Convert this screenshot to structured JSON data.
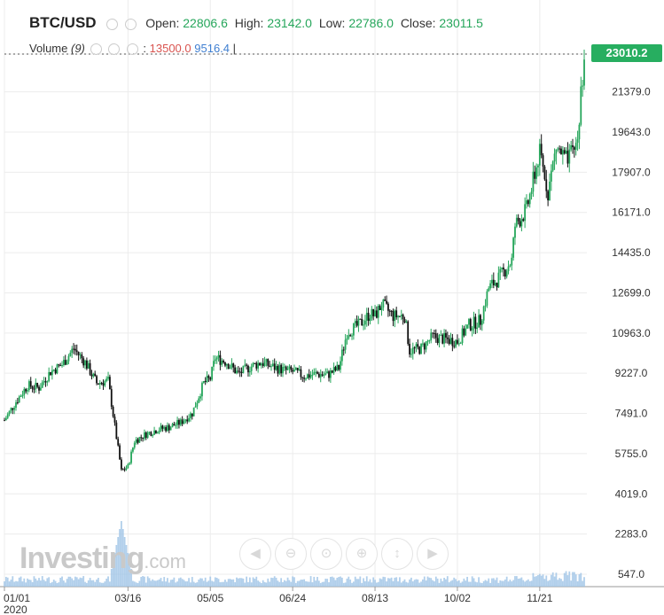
{
  "header": {
    "symbol": "BTC/USD",
    "open_label": "Open:",
    "open": "22806.6",
    "high_label": "High:",
    "high": "23142.0",
    "low_label": "Low:",
    "low": "22786.0",
    "close_label": "Close:",
    "close": "23011.5"
  },
  "volume_legend": {
    "label": "Volume",
    "period": "(9)",
    "sep": ":",
    "v1": "13500.0",
    "v2": "9516.4",
    "end": "|"
  },
  "current_price": "23010.2",
  "logo": {
    "main": "Investing",
    "suffix": ".com"
  },
  "colors": {
    "up": "#26a65b",
    "down": "#111111",
    "volume": "#9ec3e6",
    "grid": "#ececec",
    "price_tag": "#27ae60"
  },
  "nav_icons": [
    "arrow-left-icon",
    "zoom-out-icon",
    "zoom-reset-icon",
    "zoom-in-icon",
    "scroll-icon",
    "arrow-right-icon"
  ],
  "chart_data": {
    "type": "candlestick",
    "y_ticks": [
      "23010.2",
      "21379.0",
      "19643.0",
      "17907.0",
      "16171.0",
      "14435.0",
      "12699.0",
      "10963.0",
      "9227.0",
      "7491.0",
      "5755.0",
      "4019.0",
      "2283.0",
      "547.0"
    ],
    "y_tick_values": [
      23010.2,
      21379.0,
      19643.0,
      17907.0,
      16171.0,
      14435.0,
      12699.0,
      10963.0,
      9227.0,
      7491.0,
      5755.0,
      4019.0,
      2283.0,
      547.0
    ],
    "x_ticks": [
      "01/01",
      "03/16",
      "05/05",
      "06/24",
      "08/13",
      "10/02",
      "11/21"
    ],
    "x_year": "2020",
    "ylim": [
      0,
      24000
    ],
    "close_path": [
      [
        "01/01",
        7200
      ],
      [
        "01/08",
        8000
      ],
      [
        "01/15",
        8700
      ],
      [
        "01/22",
        8600
      ],
      [
        "01/29",
        9300
      ],
      [
        "02/05",
        9600
      ],
      [
        "02/12",
        10300
      ],
      [
        "02/19",
        9700
      ],
      [
        "02/26",
        8800
      ],
      [
        "03/04",
        8900
      ],
      [
        "03/12",
        5000
      ],
      [
        "03/16",
        5200
      ],
      [
        "03/20",
        6300
      ],
      [
        "03/27",
        6600
      ],
      [
        "04/03",
        6800
      ],
      [
        "04/10",
        6900
      ],
      [
        "04/17",
        7100
      ],
      [
        "04/24",
        7500
      ],
      [
        "05/01",
        8800
      ],
      [
        "05/05",
        9000
      ],
      [
        "05/08",
        9900
      ],
      [
        "05/15",
        9700
      ],
      [
        "05/22",
        9200
      ],
      [
        "05/29",
        9500
      ],
      [
        "06/05",
        9700
      ],
      [
        "06/12",
        9500
      ],
      [
        "06/19",
        9350
      ],
      [
        "06/24",
        9300
      ],
      [
        "07/01",
        9100
      ],
      [
        "07/08",
        9200
      ],
      [
        "07/15",
        9150
      ],
      [
        "07/22",
        9450
      ],
      [
        "07/27",
        11000
      ],
      [
        "08/03",
        11300
      ],
      [
        "08/10",
        11800
      ],
      [
        "08/13",
        11700
      ],
      [
        "08/17",
        12200
      ],
      [
        "08/24",
        11700
      ],
      [
        "08/31",
        11700
      ],
      [
        "09/03",
        10200
      ],
      [
        "09/10",
        10300
      ],
      [
        "09/17",
        10800
      ],
      [
        "09/24",
        10700
      ],
      [
        "10/02",
        10600
      ],
      [
        "10/09",
        11300
      ],
      [
        "10/16",
        11500
      ],
      [
        "10/21",
        12900
      ],
      [
        "10/28",
        13400
      ],
      [
        "11/04",
        14100
      ],
      [
        "11/06",
        15600
      ],
      [
        "11/13",
        16300
      ],
      [
        "11/18",
        17800
      ],
      [
        "11/21",
        18700
      ],
      [
        "11/26",
        17100
      ],
      [
        "12/01",
        19000
      ],
      [
        "12/08",
        18300
      ],
      [
        "12/14",
        19300
      ],
      [
        "12/16",
        21300
      ],
      [
        "12/18",
        23000
      ]
    ],
    "volume_spike_date": "03/12",
    "grid": true
  }
}
